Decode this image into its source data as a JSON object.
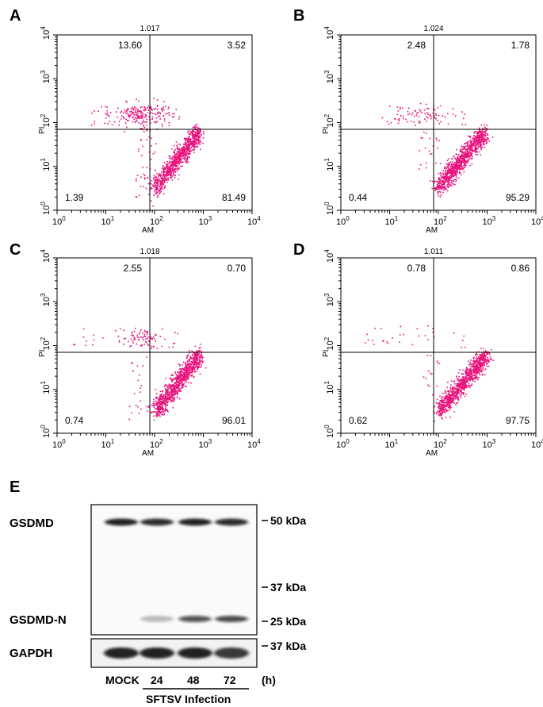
{
  "chart_data": [
    {
      "type": "scatter",
      "panel": "A",
      "scale": "log",
      "xlabel": "AM",
      "ylabel": "PI",
      "xlim": [
        1,
        10000
      ],
      "ylim": [
        1,
        10000
      ],
      "xticks": [
        "10",
        "1",
        "10",
        "2",
        "10",
        "3",
        "10",
        "4"
      ],
      "gate_x": 80,
      "gate_y": 70,
      "top_value": "1.017",
      "quadrants": {
        "ul": "13.60",
        "ur": "3.52",
        "ll": "1.39",
        "lr": "81.49"
      },
      "tick_labels": [
        {
          "b": "10",
          "e": "0"
        },
        {
          "b": "10",
          "e": "1"
        },
        {
          "b": "10",
          "e": "2"
        },
        {
          "b": "10",
          "e": "3"
        },
        {
          "b": "10",
          "e": "4"
        }
      ],
      "populations": [
        {
          "kind": "diagonal",
          "x": [
            100,
            800
          ],
          "y": [
            3,
            60
          ],
          "n": 900
        },
        {
          "kind": "cloud",
          "cx": 55,
          "cy": 150,
          "sx": 0.28,
          "sy": 0.13,
          "n": 170
        },
        {
          "kind": "uniform",
          "x": [
            5,
            300
          ],
          "y": [
            80,
            250
          ],
          "n": 60
        },
        {
          "kind": "uniform",
          "x": [
            40,
            110
          ],
          "y": [
            2,
            70
          ],
          "n": 55
        }
      ]
    },
    {
      "type": "scatter",
      "panel": "B",
      "scale": "log",
      "xlabel": "AM",
      "ylabel": "PI",
      "xlim": [
        1,
        10000
      ],
      "ylim": [
        1,
        10000
      ],
      "gate_x": 80,
      "gate_y": 70,
      "top_value": "1.024",
      "quadrants": {
        "ul": "2.48",
        "ur": "1.78",
        "ll": "0.44",
        "lr": "95.29"
      },
      "tick_labels": [
        {
          "b": "10",
          "e": "0"
        },
        {
          "b": "10",
          "e": "1"
        },
        {
          "b": "10",
          "e": "2"
        },
        {
          "b": "10",
          "e": "3"
        },
        {
          "b": "10",
          "e": "4"
        }
      ],
      "populations": [
        {
          "kind": "diagonal",
          "x": [
            95,
            900
          ],
          "y": [
            3,
            60
          ],
          "n": 1000
        },
        {
          "kind": "cloud",
          "cx": 60,
          "cy": 150,
          "sx": 0.3,
          "sy": 0.1,
          "n": 45
        },
        {
          "kind": "uniform",
          "x": [
            6,
            400
          ],
          "y": [
            90,
            260
          ],
          "n": 45
        },
        {
          "kind": "uniform",
          "x": [
            40,
            110
          ],
          "y": [
            5,
            70
          ],
          "n": 20
        }
      ]
    },
    {
      "type": "scatter",
      "panel": "C",
      "scale": "log",
      "xlabel": "AM",
      "ylabel": "PI",
      "xlim": [
        1,
        10000
      ],
      "ylim": [
        1,
        10000
      ],
      "gate_x": 80,
      "gate_y": 70,
      "top_value": "1.018",
      "quadrants": {
        "ul": "2.55",
        "ur": "0.70",
        "ll": "0.74",
        "lr": "96.01"
      },
      "tick_labels": [
        {
          "b": "10",
          "e": "0"
        },
        {
          "b": "10",
          "e": "1"
        },
        {
          "b": "10",
          "e": "2"
        },
        {
          "b": "10",
          "e": "3"
        },
        {
          "b": "10",
          "e": "4"
        }
      ],
      "populations": [
        {
          "kind": "diagonal",
          "x": [
            100,
            850
          ],
          "y": [
            3,
            60
          ],
          "n": 1000
        },
        {
          "kind": "cloud",
          "cx": 55,
          "cy": 150,
          "sx": 0.2,
          "sy": 0.11,
          "n": 70
        },
        {
          "kind": "uniform",
          "x": [
            2,
            300
          ],
          "y": [
            90,
            260
          ],
          "n": 30
        },
        {
          "kind": "uniform",
          "x": [
            30,
            100
          ],
          "y": [
            2,
            70
          ],
          "n": 25
        }
      ]
    },
    {
      "type": "scatter",
      "panel": "D",
      "scale": "log",
      "xlabel": "AM",
      "ylabel": "PI",
      "xlim": [
        1,
        10000
      ],
      "ylim": [
        1,
        10000
      ],
      "gate_x": 80,
      "gate_y": 70,
      "top_value": "1.011",
      "quadrants": {
        "ul": "0.78",
        "ur": "0.86",
        "ll": "0.62",
        "lr": "97.75"
      },
      "tick_labels": [
        {
          "b": "10",
          "e": "0"
        },
        {
          "b": "10",
          "e": "1"
        },
        {
          "b": "10",
          "e": "2"
        },
        {
          "b": "10",
          "e": "3"
        },
        {
          "b": "10",
          "e": "4"
        }
      ],
      "populations": [
        {
          "kind": "diagonal",
          "x": [
            100,
            1000
          ],
          "y": [
            3,
            60
          ],
          "n": 1000
        },
        {
          "kind": "uniform",
          "x": [
            3,
            400
          ],
          "y": [
            90,
            300
          ],
          "n": 30
        },
        {
          "kind": "uniform",
          "x": [
            50,
            110
          ],
          "y": [
            5,
            70
          ],
          "n": 15
        }
      ]
    }
  ],
  "blot": {
    "panel": "E",
    "row_labels": {
      "gsdmd": "GSDMD",
      "gsdmd_n": "GSDMD-N",
      "gapdh": "GAPDH"
    },
    "markers": [
      "50 kDa",
      "37 kDa",
      "25 kDa",
      "37 kDa"
    ],
    "lanes": [
      "MOCK",
      "24",
      "48",
      "72"
    ],
    "unit": "(h)",
    "group_label": "SFTSV Infection",
    "band_intensity": {
      "gsdmd": [
        0.95,
        0.9,
        0.95,
        0.9
      ],
      "gsdmd_n": [
        0.0,
        0.25,
        0.7,
        0.75
      ],
      "gapdh": [
        0.95,
        0.95,
        0.95,
        0.85
      ]
    }
  },
  "colors": {
    "dots": "#e8137c",
    "axes": "#000000",
    "band": "#151515"
  }
}
